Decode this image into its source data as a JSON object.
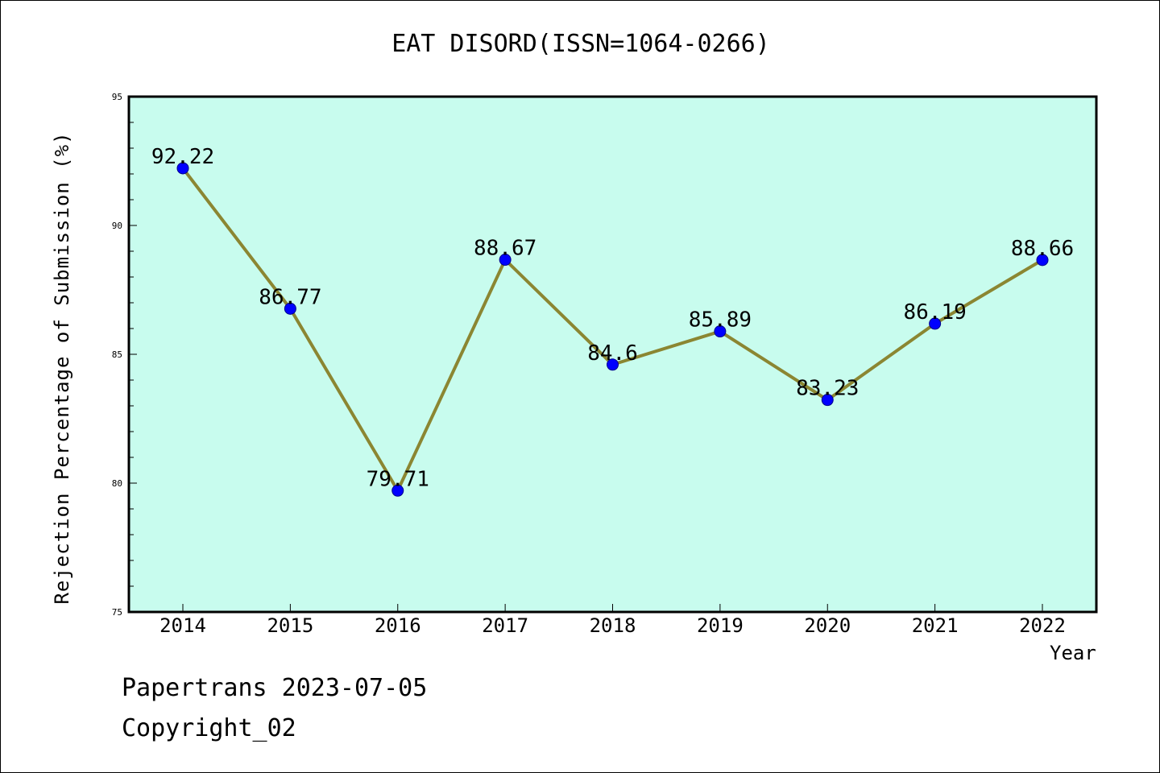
{
  "chart_data": {
    "type": "line",
    "title": "EAT DISORD(ISSN=1064-0266)",
    "xlabel": "Year",
    "ylabel": "Rejection Percentage of Submission (%)",
    "categories": [
      "2014",
      "2015",
      "2016",
      "2017",
      "2018",
      "2019",
      "2020",
      "2021",
      "2022"
    ],
    "values": [
      92.22,
      86.77,
      79.71,
      88.67,
      84.6,
      85.89,
      83.23,
      86.19,
      88.66
    ],
    "data_labels": [
      "92.22",
      "86.77",
      "79.71",
      "88.67",
      "84.6",
      "85.89",
      "83.23",
      "86.19",
      "88.66"
    ],
    "ylim": [
      75,
      95
    ],
    "yticks": [
      75,
      80,
      85,
      90,
      95
    ],
    "grid": false,
    "colors": {
      "plot_background": "#c8fcee",
      "line": "#8b8632",
      "marker": "#0000ff"
    }
  },
  "footer": {
    "date_text": "Papertrans 2023-07-05",
    "copyright_text": "Copyright_02"
  }
}
